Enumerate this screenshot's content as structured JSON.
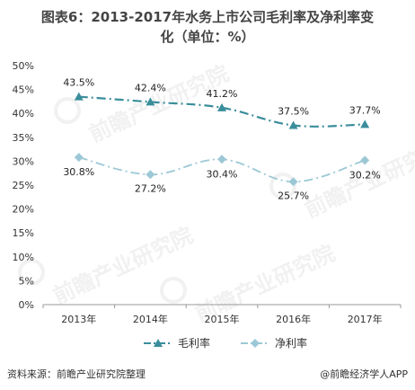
{
  "title_line1": "图表6：2013-2017年水务上市公司毛利率及净利率变",
  "title_line2": "化（单位：%）",
  "source": "资料来源：前瞻产业研究院整理",
  "brand": "@前瞻经济学人APP",
  "watermark": "前瞻产业研究院",
  "chart_data": {
    "type": "line",
    "title": "图表6：2013-2017年水务上市公司毛利率及净利率变化（单位：%）",
    "categories": [
      "2013年",
      "2014年",
      "2015年",
      "2016年",
      "2017年"
    ],
    "ylim": [
      0,
      50
    ],
    "yticks": [
      "0%",
      "5%",
      "10%",
      "15%",
      "20%",
      "25%",
      "30%",
      "35%",
      "40%",
      "45%",
      "50%"
    ],
    "grid": false,
    "legend": "bottom",
    "series": [
      {
        "name": "毛利率",
        "values": [
          43.5,
          42.4,
          41.2,
          37.5,
          37.7
        ],
        "labels": [
          "43.5%",
          "42.4%",
          "41.2%",
          "37.5%",
          "37.7%"
        ],
        "color": "#3a8d9b",
        "marker": "triangle"
      },
      {
        "name": "净利率",
        "values": [
          30.8,
          27.2,
          30.4,
          25.7,
          30.2
        ],
        "labels": [
          "30.8%",
          "27.2%",
          "30.4%",
          "25.7%",
          "30.2%"
        ],
        "color": "#9cc8d6",
        "marker": "diamond"
      }
    ]
  }
}
